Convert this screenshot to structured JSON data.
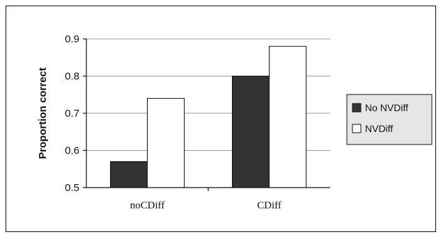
{
  "chart_data": {
    "type": "bar",
    "title": "",
    "xlabel": "",
    "ylabel": "Proportion correct",
    "ylim": [
      0.5,
      0.9
    ],
    "yticks": [
      "0.5",
      "0.6",
      "0.7",
      "0.8",
      "0.9"
    ],
    "categories": [
      "noCDiff",
      "CDiff"
    ],
    "series": [
      {
        "name": "No NVDiff",
        "values": [
          0.57,
          0.8
        ],
        "color": "#333333"
      },
      {
        "name": "NVDiff",
        "values": [
          0.74,
          0.88
        ],
        "color": "#ffffff"
      }
    ],
    "grid": true,
    "legend": "right"
  }
}
